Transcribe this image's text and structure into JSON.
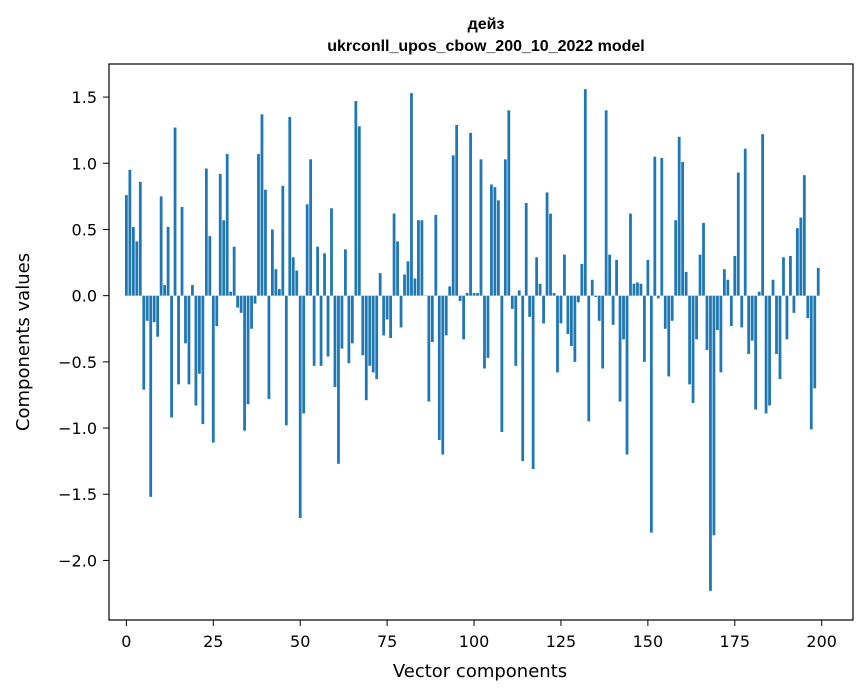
{
  "chart_data": {
    "type": "bar",
    "title": "дейз",
    "subtitle": "ukrconll_upos_cbow_200_10_2022 model",
    "xlabel": "Vector components",
    "ylabel": "Components values",
    "xlim": [
      -5,
      209
    ],
    "ylim": [
      -2.45,
      1.75
    ],
    "xticks": [
      0,
      25,
      50,
      75,
      100,
      125,
      150,
      175,
      200
    ],
    "yticks": [
      -2.0,
      -1.5,
      -1.0,
      -0.5,
      0.0,
      0.5,
      1.0,
      1.5
    ],
    "ytick_labels": [
      "−2.0",
      "−1.5",
      "−1.0",
      "−0.5",
      "0.0",
      "0.5",
      "1.0",
      "1.5"
    ],
    "xtick_labels": [
      "0",
      "25",
      "50",
      "75",
      "100",
      "125",
      "150",
      "175",
      "200"
    ],
    "bar_color": "#1f77b4",
    "grid": false,
    "x": [
      0,
      1,
      2,
      3,
      4,
      5,
      6,
      7,
      8,
      9,
      10,
      11,
      12,
      13,
      14,
      15,
      16,
      17,
      18,
      19,
      20,
      21,
      22,
      23,
      24,
      25,
      26,
      27,
      28,
      29,
      30,
      31,
      32,
      33,
      34,
      35,
      36,
      37,
      38,
      39,
      40,
      41,
      42,
      43,
      44,
      45,
      46,
      47,
      48,
      49,
      50,
      51,
      52,
      53,
      54,
      55,
      56,
      57,
      58,
      59,
      60,
      61,
      62,
      63,
      64,
      65,
      66,
      67,
      68,
      69,
      70,
      71,
      72,
      73,
      74,
      75,
      76,
      77,
      78,
      79,
      80,
      81,
      82,
      83,
      84,
      85,
      86,
      87,
      88,
      89,
      90,
      91,
      92,
      93,
      94,
      95,
      96,
      97,
      98,
      99,
      100,
      101,
      102,
      103,
      104,
      105,
      106,
      107,
      108,
      109,
      110,
      111,
      112,
      113,
      114,
      115,
      116,
      117,
      118,
      119,
      120,
      121,
      122,
      123,
      124,
      125,
      126,
      127,
      128,
      129,
      130,
      131,
      132,
      133,
      134,
      135,
      136,
      137,
      138,
      139,
      140,
      141,
      142,
      143,
      144,
      145,
      146,
      147,
      148,
      149,
      150,
      151,
      152,
      153,
      154,
      155,
      156,
      157,
      158,
      159,
      160,
      161,
      162,
      163,
      164,
      165,
      166,
      167,
      168,
      169,
      170,
      171,
      172,
      173,
      174,
      175,
      176,
      177,
      178,
      179,
      180,
      181,
      182,
      183,
      184,
      185,
      186,
      187,
      188,
      189,
      190,
      191,
      192,
      193,
      194,
      195,
      196,
      197,
      198,
      199
    ],
    "values": [
      0.76,
      0.95,
      0.52,
      0.41,
      0.86,
      -0.71,
      -0.19,
      -1.52,
      -0.2,
      -0.31,
      0.75,
      0.08,
      0.52,
      -0.92,
      1.27,
      -0.67,
      0.67,
      -0.36,
      -0.67,
      0.08,
      -0.83,
      -0.59,
      -0.97,
      0.96,
      0.45,
      -1.11,
      -0.23,
      0.92,
      0.57,
      1.07,
      0.03,
      0.37,
      -0.09,
      -0.13,
      -1.02,
      -0.82,
      -0.25,
      -0.06,
      1.07,
      1.37,
      0.8,
      -0.78,
      0.5,
      0.2,
      0.05,
      0.83,
      -0.98,
      1.35,
      0.29,
      0.19,
      -1.68,
      -0.89,
      0.69,
      1.03,
      -0.53,
      0.37,
      -0.53,
      0.32,
      -0.46,
      0.66,
      -0.69,
      -1.27,
      -0.4,
      0.35,
      -0.51,
      -0.36,
      1.47,
      1.28,
      -0.45,
      -0.79,
      -0.53,
      -0.58,
      -0.63,
      0.17,
      -0.3,
      -0.18,
      -0.32,
      0.62,
      0.41,
      -0.24,
      0.16,
      0.26,
      1.53,
      0.13,
      0.57,
      0.57,
      0.0,
      -0.8,
      -0.35,
      0.61,
      -1.09,
      -1.2,
      -0.3,
      0.07,
      1.06,
      1.29,
      -0.04,
      -0.33,
      0.02,
      1.23,
      0.02,
      0.02,
      1.03,
      -0.55,
      -0.47,
      0.84,
      0.82,
      0.72,
      -1.03,
      1.03,
      1.4,
      -0.1,
      -0.53,
      0.04,
      -1.25,
      0.7,
      -0.16,
      -1.31,
      0.29,
      0.09,
      -0.21,
      0.78,
      0.62,
      0.02,
      -0.58,
      -0.21,
      0.31,
      -0.29,
      -0.38,
      -0.5,
      -0.05,
      0.24,
      1.56,
      -0.95,
      0.12,
      -0.01,
      -0.19,
      -0.55,
      1.4,
      0.31,
      -0.22,
      0.27,
      -0.8,
      -0.33,
      -1.2,
      0.62,
      0.09,
      0.1,
      0.09,
      -0.5,
      0.27,
      -1.79,
      1.05,
      -0.02,
      1.04,
      -0.25,
      -0.61,
      -0.19,
      0.57,
      1.2,
      1.01,
      0.18,
      -0.67,
      -0.81,
      -0.33,
      0.31,
      0.55,
      -0.41,
      -2.23,
      -1.81,
      -0.26,
      -0.58,
      0.2,
      0.12,
      -0.23,
      0.3,
      0.93,
      -0.24,
      1.11,
      -0.44,
      -0.34,
      -0.86,
      0.03,
      1.22,
      -0.89,
      -0.83,
      0.12,
      -0.44,
      -0.63,
      0.29,
      -0.33,
      0.3,
      -0.13,
      0.51,
      0.59,
      0.91,
      -0.17,
      -1.01,
      -0.7,
      0.21
    ]
  }
}
